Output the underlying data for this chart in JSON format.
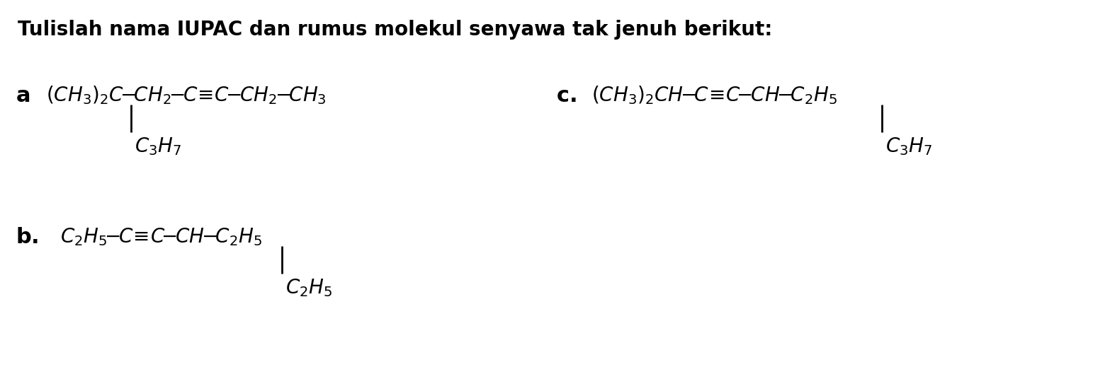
{
  "title": "Tulislah nama IUPAC dan rumus molekul senyawa tak jenuh berikut:",
  "bg_color": "#ffffff",
  "fig_width": 15.43,
  "fig_height": 5.36,
  "title_fontsize": 20,
  "label_fontsize": 22,
  "struct_fontsize": 20
}
